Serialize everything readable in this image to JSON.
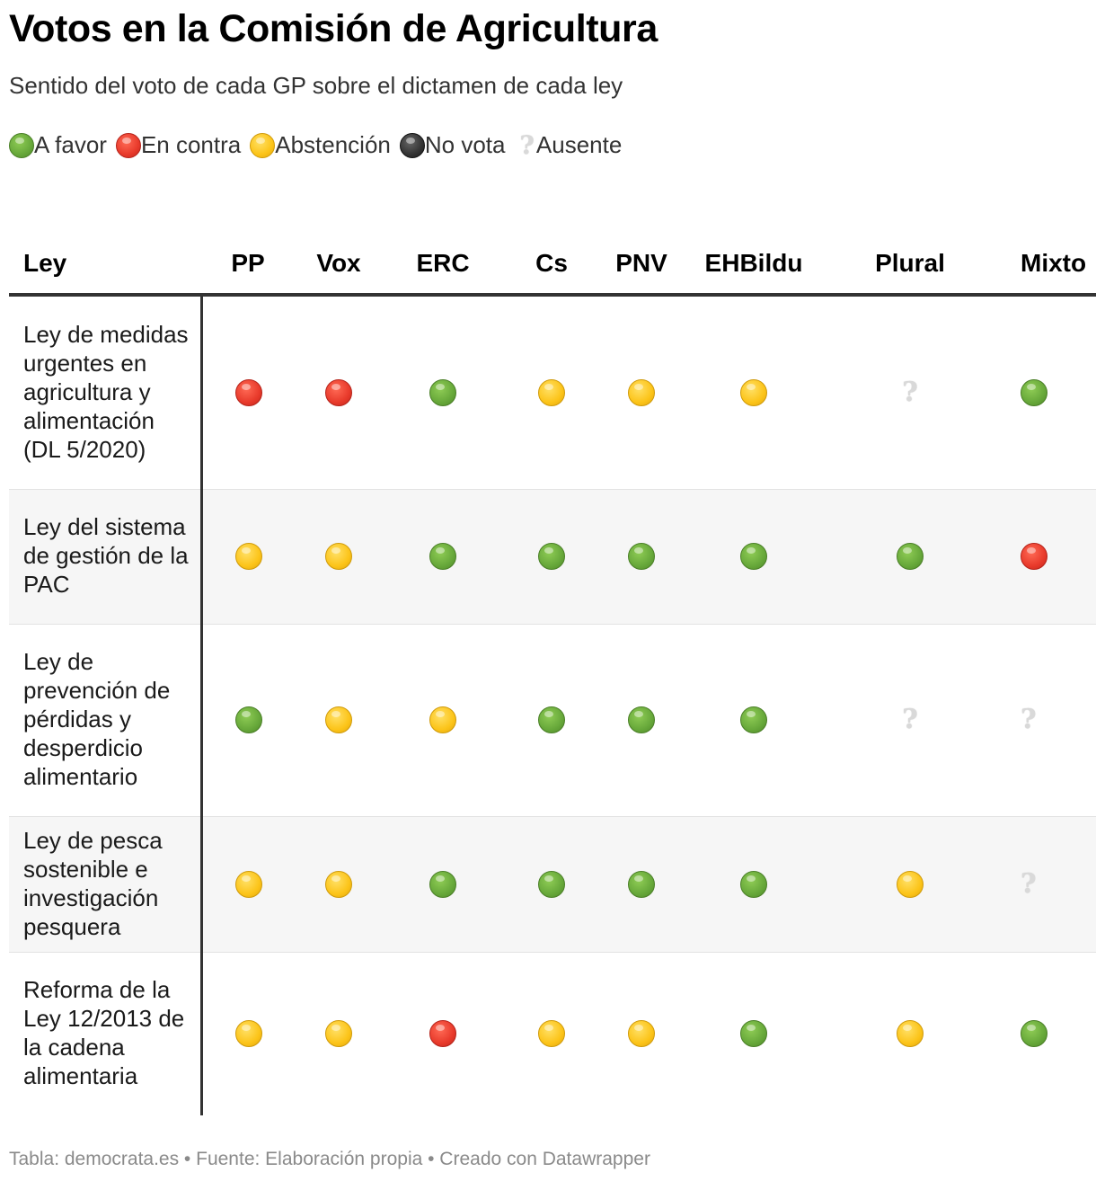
{
  "title": "Votos en la Comisión de Agricultura",
  "subtitle": "Sentido del voto de cada GP sobre el dictamen de cada ley",
  "legend": [
    {
      "key": "favor",
      "label": "A favor",
      "icon": "green-circle-icon",
      "color": "#67a83a"
    },
    {
      "key": "contra",
      "label": "En contra",
      "icon": "red-circle-icon",
      "color": "#e83a2b"
    },
    {
      "key": "abst",
      "label": "Abstención",
      "icon": "yellow-circle-icon",
      "color": "#fcc419"
    },
    {
      "key": "novota",
      "label": "No vota",
      "icon": "black-circle-icon",
      "color": "#333333"
    },
    {
      "key": "ausente",
      "label": "Ausente",
      "icon": "question-mark-icon",
      "color": "#d9d9d9"
    }
  ],
  "chart_data": {
    "type": "table",
    "columns": [
      "Ley",
      "PP",
      "Vox",
      "ERC",
      "Cs",
      "PNV",
      "EHBildu",
      "Plural",
      "Mixto"
    ],
    "rows": [
      {
        "law": "Ley de medidas urgentes en agricultura y alimentación (DL 5/2020)",
        "votes": [
          "contra",
          "contra",
          "favor",
          "abst",
          "abst",
          "abst",
          "ausente",
          "favor"
        ]
      },
      {
        "law": "Ley del sistema de gestión de la PAC",
        "votes": [
          "abst",
          "abst",
          "favor",
          "favor",
          "favor",
          "favor",
          "favor",
          "contra"
        ]
      },
      {
        "law": "Ley de prevención de pérdidas y desperdicio alimentario",
        "votes": [
          "favor",
          "abst",
          "abst",
          "favor",
          "favor",
          "favor",
          "ausente",
          "ausente"
        ]
      },
      {
        "law": "Ley de pesca sostenible e investigación pesquera",
        "votes": [
          "abst",
          "abst",
          "favor",
          "favor",
          "favor",
          "favor",
          "abst",
          "ausente"
        ]
      },
      {
        "law": "Reforma de la Ley 12/2013 de la cadena alimentaria",
        "votes": [
          "abst",
          "abst",
          "contra",
          "abst",
          "abst",
          "favor",
          "abst",
          "favor"
        ]
      }
    ]
  },
  "footer": "Tabla: democrata.es • Fuente: Elaboración propia • Creado con Datawrapper"
}
